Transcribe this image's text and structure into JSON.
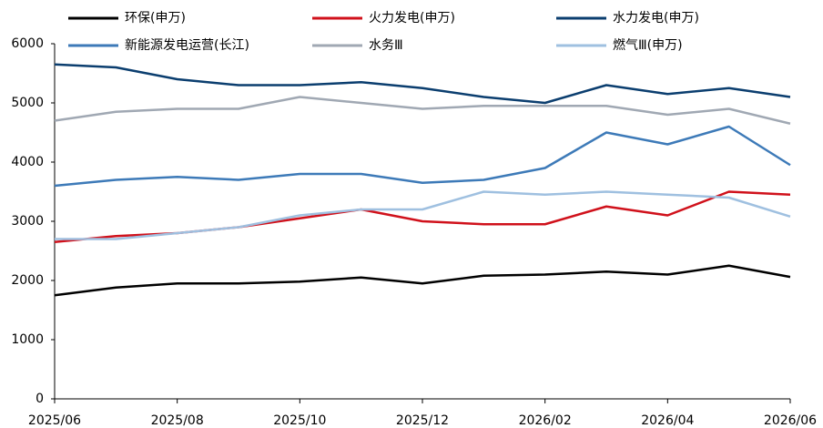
{
  "chart_data": {
    "type": "line",
    "x": [
      "2025/06",
      null,
      "2025/08",
      null,
      "2025/10",
      null,
      "2025/12",
      null,
      "2026/02",
      null,
      "2026/04",
      null,
      "2026/06"
    ],
    "series": [
      {
        "name": "环保(申万)",
        "color": "#000000",
        "values": [
          1750,
          1880,
          1950,
          1950,
          1980,
          2050,
          1950,
          2080,
          2100,
          2150,
          2100,
          2250,
          2060
        ]
      },
      {
        "name": "火力发电(申万)",
        "color": "#d0111b",
        "values": [
          2650,
          2750,
          2800,
          2900,
          3050,
          3200,
          3000,
          2950,
          2950,
          3250,
          3100,
          3500,
          3450
        ]
      },
      {
        "name": "水力发电(申万)",
        "color": "#0b3e6f",
        "values": [
          5650,
          5600,
          5400,
          5300,
          5300,
          5350,
          5250,
          5100,
          5000,
          5300,
          5150,
          5250,
          5100
        ]
      },
      {
        "name": "新能源发电运营(长江)",
        "color": "#3d7ab8",
        "values": [
          3600,
          3700,
          3750,
          3700,
          3800,
          3800,
          3650,
          3700,
          3900,
          4500,
          4300,
          4600,
          3950
        ]
      },
      {
        "name": "水务Ⅲ",
        "color": "#a0a8b3",
        "values": [
          4700,
          4850,
          4900,
          4900,
          5100,
          5000,
          4900,
          4950,
          4950,
          4950,
          4800,
          4900,
          4650
        ]
      },
      {
        "name": "燃气Ⅲ(申万)",
        "color": "#9fc0e0",
        "values": [
          2700,
          2700,
          2800,
          2900,
          3100,
          3200,
          3200,
          3500,
          3450,
          3500,
          3450,
          3400,
          3080
        ]
      }
    ],
    "ylim": [
      0,
      6000
    ],
    "yticks": [
      0,
      1000,
      2000,
      3000,
      4000,
      5000,
      6000
    ]
  }
}
